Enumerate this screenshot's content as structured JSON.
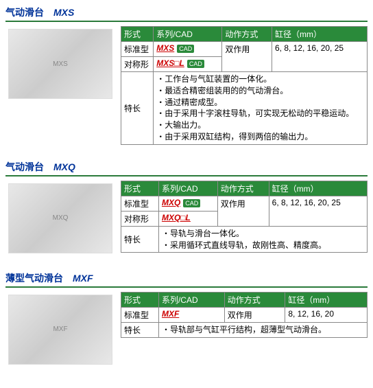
{
  "products": [
    {
      "title_cn": "气动滑台",
      "title_model": "MXS",
      "img_alt": "MXS",
      "headers": [
        "形式",
        "系列/CAD",
        "动作方式",
        "缸径（mm）"
      ],
      "rows": [
        {
          "type": "标准型",
          "series": "MXS",
          "cad": true,
          "action": "双作用",
          "bore": "6, 8, 12, 16, 20, 25"
        },
        {
          "type": "对称形",
          "series": "MXS□L",
          "cad": true
        }
      ],
      "feature_label": "特长",
      "features": [
        "工作台与气缸装置的一体化。",
        "最适合精密组装用的的气动滑台。",
        "通过精密成型。",
        "由于采用十字滚柱导轨，可实现无松动的平稳运动。",
        "大输出力。",
        "由于采用双缸结构，得到两倍的输出力。"
      ]
    },
    {
      "title_cn": "气动滑台",
      "title_model": "MXQ",
      "img_alt": "MXQ",
      "headers": [
        "形式",
        "系列/CAD",
        "动作方式",
        "缸径（mm）"
      ],
      "rows": [
        {
          "type": "标准型",
          "series": "MXQ",
          "cad": true,
          "action": "双作用",
          "bore": "6, 8, 12, 16, 20, 25"
        },
        {
          "type": "对称形",
          "series": "MXQ□L",
          "cad": false
        }
      ],
      "feature_label": "特长",
      "features": [
        "导轨与滑台一体化。",
        "采用循环式直线导轨，故刚性高、精度高。"
      ]
    },
    {
      "title_cn": "薄型气动滑台",
      "title_model": "MXF",
      "img_alt": "MXF",
      "headers": [
        "形式",
        "系列/CAD",
        "动作方式",
        "缸径（mm）"
      ],
      "rows": [
        {
          "type": "标准型",
          "series": "MXF",
          "cad": false,
          "action": "双作用",
          "bore": "8, 12, 16, 20"
        }
      ],
      "feature_label": "特长",
      "features": [
        "导轨部与气缸平行结构，超薄型气动滑台。"
      ]
    }
  ]
}
